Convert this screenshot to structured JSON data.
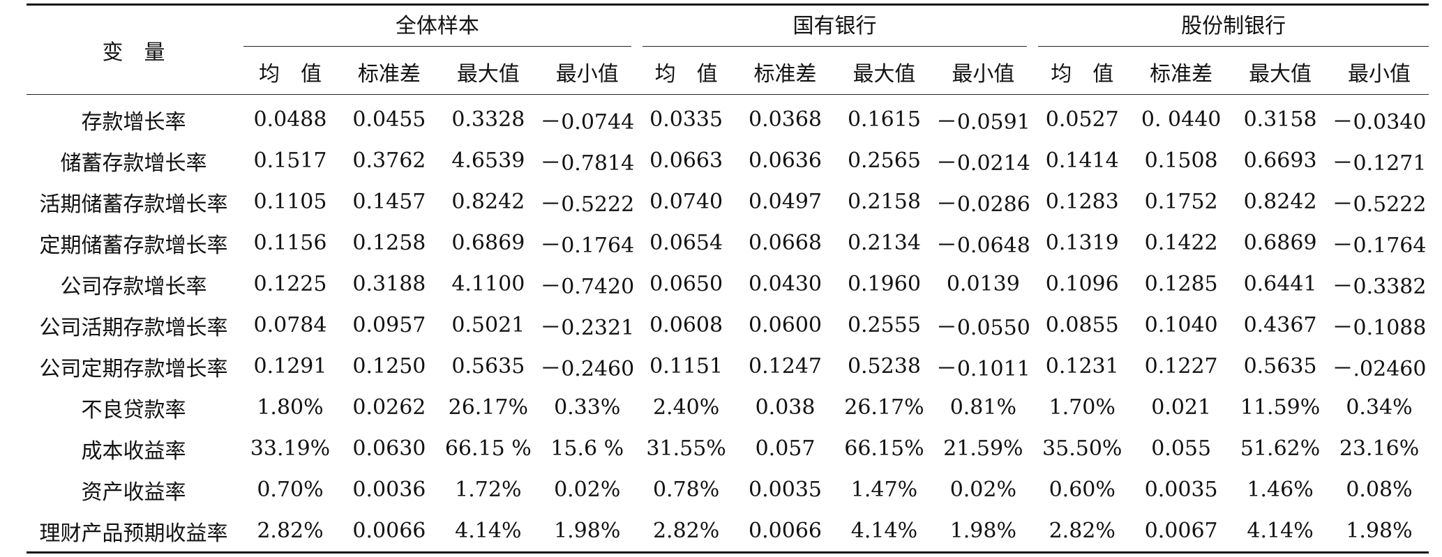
{
  "table": {
    "variable_header": "变　量",
    "groups": [
      "全体样本",
      "国有银行",
      "股份制银行"
    ],
    "stat_headers": [
      "均　值",
      "标准差",
      "最大值",
      "最小值"
    ],
    "rows": [
      {
        "variable": "存款增长率",
        "values": [
          "0.0488",
          "0.0455",
          "0.3328",
          "－0.0744",
          "0.0335",
          "0.0368",
          "0.1615",
          "－0.0591",
          "0.0527",
          "0. 0440",
          "0.3158",
          "－0.0340"
        ]
      },
      {
        "variable": "储蓄存款增长率",
        "values": [
          "0.1517",
          "0.3762",
          "4.6539",
          "－0.7814",
          "0.0663",
          "0.0636",
          "0.2565",
          "－0.0214",
          "0.1414",
          "0.1508",
          "0.6693",
          "－0.1271"
        ]
      },
      {
        "variable": "活期储蓄存款增长率",
        "values": [
          "0.1105",
          "0.1457",
          "0.8242",
          "－0.5222",
          "0.0740",
          "0.0497",
          "0.2158",
          "－0.0286",
          "0.1283",
          "0.1752",
          "0.8242",
          "－0.5222"
        ]
      },
      {
        "variable": "定期储蓄存款增长率",
        "values": [
          "0.1156",
          "0.1258",
          "0.6869",
          "－0.1764",
          "0.0654",
          "0.0668",
          "0.2134",
          "－0.0648",
          "0.1319",
          "0.1422",
          "0.6869",
          "－0.1764"
        ]
      },
      {
        "variable": "公司存款增长率",
        "values": [
          "0.1225",
          "0.3188",
          "4.1100",
          "－0.7420",
          "0.0650",
          "0.0430",
          "0.1960",
          "0.0139",
          "0.1096",
          "0.1285",
          "0.6441",
          "－0.3382"
        ]
      },
      {
        "variable": "公司活期存款增长率",
        "values": [
          "0.0784",
          "0.0957",
          "0.5021",
          "－0.2321",
          "0.0608",
          "0.0600",
          "0.2555",
          "－0.0550",
          "0.0855",
          "0.1040",
          "0.4367",
          "－0.1088"
        ]
      },
      {
        "variable": "公司定期存款增长率",
        "values": [
          "0.1291",
          "0.1250",
          "0.5635",
          "－0.2460",
          "0.1151",
          "0.1247",
          "0.5238",
          "－0.1011",
          "0.1231",
          "0.1227",
          "0.5635",
          "－.02460"
        ]
      },
      {
        "variable": "不良贷款率",
        "values": [
          "1.80%",
          "0.0262",
          "26.17%",
          "0.33%",
          "2.40%",
          "0.038",
          "26.17%",
          "0.81%",
          "1.70%",
          "0.021",
          "11.59%",
          "0.34%"
        ]
      },
      {
        "variable": "成本收益率",
        "values": [
          "33.19%",
          "0.0630",
          "66.15 %",
          "15.6 %",
          "31.55%",
          "0.057",
          "66.15%",
          "21.59%",
          "35.50%",
          "0.055",
          "51.62%",
          "23.16%"
        ]
      },
      {
        "variable": "资产收益率",
        "values": [
          "0.70%",
          "0.0036",
          "1.72%",
          "0.02%",
          "0.78%",
          "0.0035",
          "1.47%",
          "0.02%",
          "0.60%",
          "0.0035",
          "1.46%",
          "0.08%"
        ]
      },
      {
        "variable": "理财产品预期收益率",
        "values": [
          "2.82%",
          "0.0066",
          "4.14%",
          "1.98%",
          "2.82%",
          "0.0066",
          "4.14%",
          "1.98%",
          "2.82%",
          "0.0067",
          "4.14%",
          "1.98%"
        ]
      }
    ]
  }
}
